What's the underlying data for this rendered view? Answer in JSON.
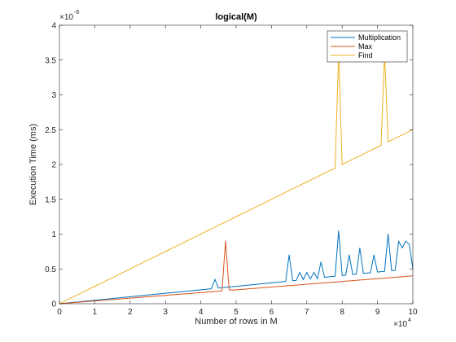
{
  "chart_data": {
    "type": "line",
    "title": "logical(M)",
    "xlabel": "Number of rows in M",
    "ylabel": "Execution Time (ms)",
    "xlim": [
      0,
      100000
    ],
    "ylim": [
      0,
      4e-06
    ],
    "x_ticks": [
      0,
      10000,
      20000,
      30000,
      40000,
      50000,
      60000,
      70000,
      80000,
      90000,
      100000
    ],
    "x_tick_labels": [
      "0",
      "1",
      "2",
      "3",
      "4",
      "5",
      "6",
      "7",
      "8",
      "9",
      "10"
    ],
    "y_ticks": [
      0,
      5e-07,
      1e-06,
      1.5e-06,
      2e-06,
      2.5e-06,
      3e-06,
      3.5e-06,
      4e-06
    ],
    "y_tick_labels": [
      "0",
      "0.5",
      "1",
      "1.5",
      "2",
      "2.5",
      "3",
      "3.5",
      "4"
    ],
    "x_exponent_label": "×10",
    "x_exponent_power": "4",
    "y_exponent_label": "×10",
    "y_exponent_power": "-6",
    "grid": false,
    "legend_position": "top-right",
    "x": [
      0,
      1000,
      2000,
      3000,
      4000,
      5000,
      6000,
      7000,
      8000,
      9000,
      10000,
      11000,
      12000,
      13000,
      14000,
      15000,
      16000,
      17000,
      18000,
      19000,
      20000,
      21000,
      22000,
      23000,
      24000,
      25000,
      26000,
      27000,
      28000,
      29000,
      30000,
      31000,
      32000,
      33000,
      34000,
      35000,
      36000,
      37000,
      38000,
      39000,
      40000,
      41000,
      42000,
      43000,
      44000,
      45000,
      46000,
      47000,
      48000,
      49000,
      50000,
      51000,
      52000,
      53000,
      54000,
      55000,
      56000,
      57000,
      58000,
      59000,
      60000,
      61000,
      62000,
      63000,
      64000,
      65000,
      66000,
      67000,
      68000,
      69000,
      70000,
      71000,
      72000,
      73000,
      74000,
      75000,
      76000,
      77000,
      78000,
      79000,
      80000,
      81000,
      82000,
      83000,
      84000,
      85000,
      86000,
      87000,
      88000,
      89000,
      90000,
      91000,
      92000,
      93000,
      94000,
      95000,
      96000,
      97000,
      98000,
      99000,
      100000
    ],
    "series": [
      {
        "name": "Multiplication",
        "color": "#0072BD",
        "values": [
          0,
          5e-09,
          1e-08,
          1.5e-08,
          2e-08,
          2.5e-08,
          3e-08,
          3.5e-08,
          4e-08,
          4.5e-08,
          5e-08,
          5.5e-08,
          6e-08,
          6.5e-08,
          7e-08,
          7.5e-08,
          8e-08,
          8.5e-08,
          9e-08,
          9.5e-08,
          1e-07,
          1.05e-07,
          1.1e-07,
          1.15e-07,
          1.2e-07,
          1.25e-07,
          1.3e-07,
          1.35e-07,
          1.4e-07,
          1.45e-07,
          1.5e-07,
          1.55e-07,
          1.6e-07,
          1.65e-07,
          1.7e-07,
          1.75e-07,
          1.8e-07,
          1.85e-07,
          1.9e-07,
          1.95e-07,
          2e-07,
          2.05e-07,
          2.1e-07,
          2.15e-07,
          3.5e-07,
          2.25e-07,
          2.3e-07,
          2.35e-07,
          2.4e-07,
          2.45e-07,
          2.5e-07,
          2.55e-07,
          2.6e-07,
          2.65e-07,
          2.7e-07,
          2.75e-07,
          2.8e-07,
          2.85e-07,
          2.9e-07,
          2.95e-07,
          3e-07,
          3.05e-07,
          3.1e-07,
          3.15e-07,
          3.2e-07,
          7e-07,
          3.3e-07,
          3.35e-07,
          4.5e-07,
          3.45e-07,
          4.5e-07,
          3.55e-07,
          4.5e-07,
          3.6e-07,
          6e-07,
          3.8e-07,
          3.85e-07,
          3.9e-07,
          3.95e-07,
          1.05e-06,
          4.05e-07,
          4.1e-07,
          7e-07,
          4.2e-07,
          4.25e-07,
          8e-07,
          4.35e-07,
          4.4e-07,
          4.45e-07,
          7e-07,
          4.55e-07,
          4.6e-07,
          4.65e-07,
          1e-06,
          4.75e-07,
          4.8e-07,
          9e-07,
          8e-07,
          9e-07,
          8.5e-07,
          5e-07
        ]
      },
      {
        "name": "Max",
        "color": "#D95319",
        "values": [
          0,
          4e-09,
          8e-09,
          1.2e-08,
          1.6e-08,
          2e-08,
          2.4e-08,
          2.8e-08,
          3.2e-08,
          3.6e-08,
          4e-08,
          4.4e-08,
          4.8e-08,
          5.2e-08,
          5.6e-08,
          6e-08,
          6.4e-08,
          6.8e-08,
          7.2e-08,
          7.6e-08,
          8e-08,
          8.4e-08,
          8.8e-08,
          9.2e-08,
          9.6e-08,
          1e-07,
          1.04e-07,
          1.08e-07,
          1.12e-07,
          1.16e-07,
          1.2e-07,
          1.24e-07,
          1.28e-07,
          1.32e-07,
          1.36e-07,
          1.4e-07,
          1.44e-07,
          1.48e-07,
          1.52e-07,
          1.56e-07,
          1.6e-07,
          1.64e-07,
          1.68e-07,
          1.72e-07,
          1.76e-07,
          1.8e-07,
          1.84e-07,
          9e-07,
          2e-07,
          1.96e-07,
          2e-07,
          2.04e-07,
          2.08e-07,
          2.12e-07,
          2.16e-07,
          2.2e-07,
          2.24e-07,
          2.28e-07,
          2.32e-07,
          2.36e-07,
          2.4e-07,
          2.44e-07,
          2.48e-07,
          2.52e-07,
          2.56e-07,
          2.6e-07,
          2.64e-07,
          2.68e-07,
          2.72e-07,
          2.76e-07,
          2.8e-07,
          2.84e-07,
          2.88e-07,
          2.92e-07,
          2.96e-07,
          3e-07,
          3.04e-07,
          3.08e-07,
          3.12e-07,
          3.16e-07,
          3.2e-07,
          3.24e-07,
          3.28e-07,
          3.32e-07,
          3.36e-07,
          3.4e-07,
          3.44e-07,
          3.48e-07,
          3.52e-07,
          3.56e-07,
          3.6e-07,
          3.64e-07,
          3.68e-07,
          3.72e-07,
          3.76e-07,
          3.8e-07,
          3.84e-07,
          3.88e-07,
          3.92e-07,
          3.96e-07,
          4e-07
        ]
      },
      {
        "name": "Find",
        "color": "#EDB120",
        "values": [
          0,
          2.5e-08,
          5e-08,
          7.5e-08,
          1e-07,
          1.25e-07,
          1.5e-07,
          1.75e-07,
          2e-07,
          2.25e-07,
          2.5e-07,
          2.75e-07,
          3e-07,
          3.25e-07,
          3.5e-07,
          3.75e-07,
          4e-07,
          4.25e-07,
          4.5e-07,
          4.75e-07,
          5e-07,
          5.25e-07,
          5.5e-07,
          5.75e-07,
          6e-07,
          6.25e-07,
          6.5e-07,
          6.75e-07,
          7e-07,
          7.25e-07,
          7.5e-07,
          7.75e-07,
          8e-07,
          8.25e-07,
          8.5e-07,
          8.75e-07,
          9e-07,
          9.25e-07,
          9.5e-07,
          9.75e-07,
          1e-06,
          1.025e-06,
          1.05e-06,
          1.075e-06,
          1.1e-06,
          1.125e-06,
          1.15e-06,
          1.175e-06,
          1.2e-06,
          1.225e-06,
          1.25e-06,
          1.275e-06,
          1.3e-06,
          1.325e-06,
          1.35e-06,
          1.375e-06,
          1.4e-06,
          1.425e-06,
          1.45e-06,
          1.475e-06,
          1.5e-06,
          1.525e-06,
          1.55e-06,
          1.575e-06,
          1.6e-06,
          1.625e-06,
          1.65e-06,
          1.675e-06,
          1.7e-06,
          1.725e-06,
          1.75e-06,
          1.775e-06,
          1.8e-06,
          1.825e-06,
          1.85e-06,
          1.875e-06,
          1.9e-06,
          1.925e-06,
          1.95e-06,
          3.6e-06,
          2e-06,
          2.025e-06,
          2.05e-06,
          2.075e-06,
          2.1e-06,
          2.125e-06,
          2.15e-06,
          2.175e-06,
          2.2e-06,
          2.225e-06,
          2.25e-06,
          2.275e-06,
          3.6e-06,
          2.325e-06,
          2.35e-06,
          2.375e-06,
          2.4e-06,
          2.425e-06,
          2.45e-06,
          2.475e-06,
          2.5e-06
        ]
      }
    ]
  }
}
